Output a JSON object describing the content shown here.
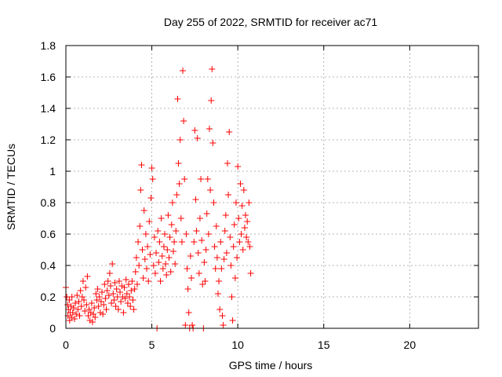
{
  "chart_data": {
    "type": "scatter",
    "title": "Day 255 of 2022, SRMTID for receiver ac71",
    "xlabel": "GPS time / hours",
    "ylabel": "SRMTID / TECUs",
    "xlim": [
      0,
      24
    ],
    "ylim": [
      0,
      1.8
    ],
    "xticks": [
      0,
      5,
      10,
      15,
      20
    ],
    "yticks": [
      0,
      0.2,
      0.4,
      0.6,
      0.8,
      1,
      1.2,
      1.4,
      1.6,
      1.8
    ],
    "xtick_labels": [
      "0",
      "5",
      "10",
      "15",
      "20"
    ],
    "ytick_labels": [
      "0",
      "0.2",
      "0.4",
      "0.6",
      "0.8",
      "1",
      "1.2",
      "1.4",
      "1.6",
      "1.8"
    ],
    "grid": true,
    "marker": "plus",
    "color": "#ff0000",
    "series": [
      {
        "points": [
          [
            0.0,
            0.26
          ],
          [
            0.05,
            0.2
          ],
          [
            0.1,
            0.15
          ],
          [
            0.12,
            0.08
          ],
          [
            0.15,
            0.12
          ],
          [
            0.2,
            0.18
          ],
          [
            0.22,
            0.05
          ],
          [
            0.25,
            0.1
          ],
          [
            0.3,
            0.14
          ],
          [
            0.33,
            0.07
          ],
          [
            0.35,
            0.2
          ],
          [
            0.4,
            0.1
          ],
          [
            0.45,
            0.13
          ],
          [
            0.5,
            0.06
          ],
          [
            0.55,
            0.16
          ],
          [
            0.6,
            0.09
          ],
          [
            0.65,
            0.21
          ],
          [
            0.7,
            0.12
          ],
          [
            0.75,
            0.17
          ],
          [
            0.8,
            0.08
          ],
          [
            0.85,
            0.24
          ],
          [
            0.9,
            0.14
          ],
          [
            0.95,
            0.2
          ],
          [
            1.0,
            0.3
          ],
          [
            1.05,
            0.18
          ],
          [
            1.1,
            0.11
          ],
          [
            1.15,
            0.26
          ],
          [
            1.2,
            0.15
          ],
          [
            1.25,
            0.33
          ],
          [
            1.3,
            0.08
          ],
          [
            1.35,
            0.12
          ],
          [
            1.4,
            0.05
          ],
          [
            1.45,
            0.1
          ],
          [
            1.5,
            0.16
          ],
          [
            1.55,
            0.04
          ],
          [
            1.6,
            0.09
          ],
          [
            1.65,
            0.13
          ],
          [
            1.7,
            0.07
          ],
          [
            1.75,
            0.22
          ],
          [
            1.8,
            0.18
          ],
          [
            1.85,
            0.25
          ],
          [
            1.9,
            0.14
          ],
          [
            1.95,
            0.2
          ],
          [
            2.0,
            0.1
          ],
          [
            2.05,
            0.17
          ],
          [
            2.1,
            0.23
          ],
          [
            2.15,
            0.09
          ],
          [
            2.2,
            0.15
          ],
          [
            2.25,
            0.28
          ],
          [
            2.3,
            0.19
          ],
          [
            2.35,
            0.12
          ],
          [
            2.4,
            0.24
          ],
          [
            2.45,
            0.3
          ],
          [
            2.5,
            0.21
          ],
          [
            2.55,
            0.35
          ],
          [
            2.6,
            0.27
          ],
          [
            2.65,
            0.16
          ],
          [
            2.7,
            0.41
          ],
          [
            2.75,
            0.22
          ],
          [
            2.8,
            0.18
          ],
          [
            2.85,
            0.29
          ],
          [
            2.9,
            0.14
          ],
          [
            2.95,
            0.25
          ],
          [
            3.0,
            0.2
          ],
          [
            3.05,
            0.12
          ],
          [
            3.1,
            0.3
          ],
          [
            3.15,
            0.23
          ],
          [
            3.2,
            0.17
          ],
          [
            3.25,
            0.27
          ],
          [
            3.3,
            0.2
          ],
          [
            3.35,
            0.1
          ],
          [
            3.4,
            0.26
          ],
          [
            3.45,
            0.19
          ],
          [
            3.5,
            0.31
          ],
          [
            3.55,
            0.22
          ],
          [
            3.6,
            0.16
          ],
          [
            3.65,
            0.28
          ],
          [
            3.7,
            0.2
          ],
          [
            3.75,
            0.14
          ],
          [
            3.8,
            0.24
          ],
          [
            3.85,
            0.3
          ],
          [
            3.9,
            0.18
          ],
          [
            3.95,
            0.12
          ],
          [
            4.0,
            0.25
          ],
          [
            4.05,
            0.36
          ],
          [
            4.1,
            0.45
          ],
          [
            4.15,
            0.28
          ],
          [
            4.2,
            0.55
          ],
          [
            4.25,
            0.4
          ],
          [
            4.3,
            0.65
          ],
          [
            4.35,
            0.88
          ],
          [
            4.4,
            1.04
          ],
          [
            4.45,
            0.5
          ],
          [
            4.5,
            0.32
          ],
          [
            4.55,
            0.75
          ],
          [
            4.6,
            0.44
          ],
          [
            4.65,
            0.6
          ],
          [
            4.7,
            0.38
          ],
          [
            4.75,
            0.52
          ],
          [
            4.8,
            0.3
          ],
          [
            4.85,
            0.68
          ],
          [
            4.9,
            0.47
          ],
          [
            4.95,
            0.83
          ],
          [
            5.0,
            1.02
          ],
          [
            5.05,
            0.95
          ],
          [
            5.1,
            0.4
          ],
          [
            5.15,
            0.58
          ],
          [
            5.2,
            0.35
          ],
          [
            5.25,
            0.48
          ],
          [
            5.3,
            0.0
          ],
          [
            5.35,
            0.62
          ],
          [
            5.4,
            0.42
          ],
          [
            5.45,
            0.55
          ],
          [
            5.5,
            0.3
          ],
          [
            5.55,
            0.7
          ],
          [
            5.6,
            0.46
          ],
          [
            5.65,
            0.38
          ],
          [
            5.7,
            0.52
          ],
          [
            5.75,
            0.6
          ],
          [
            5.8,
            0.41
          ],
          [
            5.85,
            0.34
          ],
          [
            5.9,
            0.5
          ],
          [
            5.95,
            0.72
          ],
          [
            6.0,
            0.45
          ],
          [
            6.05,
            0.58
          ],
          [
            6.1,
            0.36
          ],
          [
            6.15,
            0.66
          ],
          [
            6.2,
            0.8
          ],
          [
            6.25,
            0.49
          ],
          [
            6.3,
            0.55
          ],
          [
            6.35,
            0.41
          ],
          [
            6.4,
            0.62
          ],
          [
            6.45,
            0.85
          ],
          [
            6.5,
            1.46
          ],
          [
            6.55,
            1.05
          ],
          [
            6.6,
            0.92
          ],
          [
            6.65,
            1.2
          ],
          [
            6.7,
            0.7
          ],
          [
            6.75,
            0.55
          ],
          [
            6.8,
            1.64
          ],
          [
            6.85,
            1.32
          ],
          [
            6.9,
            0.95
          ],
          [
            6.95,
            0.02
          ],
          [
            7.0,
            0.6
          ],
          [
            7.05,
            0.38
          ],
          [
            7.1,
            0.25
          ],
          [
            7.15,
            0.1
          ],
          [
            7.2,
            0.0
          ],
          [
            7.25,
            0.46
          ],
          [
            7.3,
            0.32
          ],
          [
            7.35,
            0.02
          ],
          [
            7.4,
            0.0
          ],
          [
            7.45,
            0.55
          ],
          [
            7.5,
            1.26
          ],
          [
            7.55,
            0.82
          ],
          [
            7.6,
            0.62
          ],
          [
            7.65,
            1.21
          ],
          [
            7.7,
            0.48
          ],
          [
            7.75,
            0.35
          ],
          [
            7.8,
            0.7
          ],
          [
            7.85,
            0.95
          ],
          [
            7.9,
            0.56
          ],
          [
            7.95,
            0.28
          ],
          [
            8.0,
            0.0
          ],
          [
            8.05,
            0.42
          ],
          [
            8.1,
            0.3
          ],
          [
            8.15,
            0.5
          ],
          [
            8.2,
            0.73
          ],
          [
            8.25,
            0.95
          ],
          [
            8.3,
            0.6
          ],
          [
            8.35,
            1.27
          ],
          [
            8.4,
            0.88
          ],
          [
            8.45,
            1.45
          ],
          [
            8.5,
            1.65
          ],
          [
            8.55,
            1.18
          ],
          [
            8.6,
            0.8
          ],
          [
            8.65,
            0.52
          ],
          [
            8.7,
            0.38
          ],
          [
            8.75,
            0.65
          ],
          [
            8.8,
            0.45
          ],
          [
            8.85,
            0.22
          ],
          [
            8.9,
            0.3
          ],
          [
            8.95,
            0.12
          ],
          [
            9.0,
            0.55
          ],
          [
            9.05,
            0.38
          ],
          [
            9.1,
            0.08
          ],
          [
            9.15,
            0.02
          ],
          [
            9.2,
            0.44
          ],
          [
            9.25,
            0.62
          ],
          [
            9.3,
            0.72
          ],
          [
            9.35,
            0.48
          ],
          [
            9.4,
            1.05
          ],
          [
            9.45,
            0.85
          ],
          [
            9.5,
            1.25
          ],
          [
            9.55,
            0.58
          ],
          [
            9.6,
            0.4
          ],
          [
            9.65,
            0.2
          ],
          [
            9.7,
            0.05
          ],
          [
            9.75,
            0.52
          ],
          [
            9.8,
            0.66
          ],
          [
            9.85,
            0.32
          ],
          [
            9.9,
            0.8
          ],
          [
            9.95,
            0.45
          ],
          [
            10.0,
            1.03
          ],
          [
            10.05,
            0.7
          ],
          [
            10.1,
            0.55
          ],
          [
            10.15,
            0.92
          ],
          [
            10.2,
            0.6
          ],
          [
            10.25,
            0.78
          ],
          [
            10.3,
            0.5
          ],
          [
            10.35,
            0.88
          ],
          [
            10.4,
            0.64
          ],
          [
            10.45,
            0.72
          ],
          [
            10.5,
            0.58
          ],
          [
            10.55,
            0.68
          ],
          [
            10.6,
            0.55
          ],
          [
            10.65,
            0.8
          ],
          [
            10.7,
            0.52
          ],
          [
            10.75,
            0.35
          ]
        ]
      }
    ]
  }
}
